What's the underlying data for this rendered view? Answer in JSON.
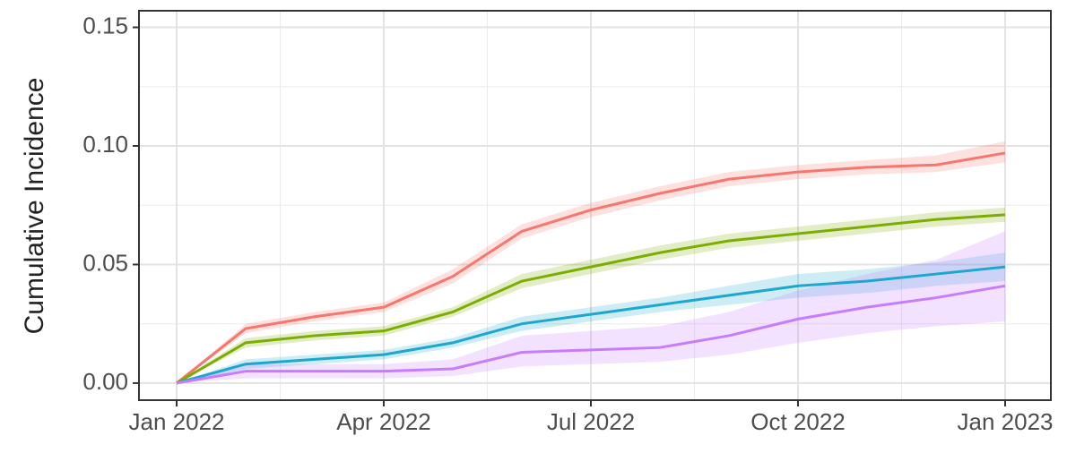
{
  "chart_data": {
    "type": "line",
    "y_label": "Cumulative Incidence",
    "x": [
      "2022-01",
      "2022-02",
      "2022-03",
      "2022-04",
      "2022-05",
      "2022-06",
      "2022-07",
      "2022-08",
      "2022-09",
      "2022-10",
      "2022-11",
      "2022-12",
      "2023-01"
    ],
    "xticks": [
      {
        "value": "2022-01",
        "label": "Jan 2022"
      },
      {
        "value": "2022-04",
        "label": "Apr 2022"
      },
      {
        "value": "2022-07",
        "label": "Jul 2022"
      },
      {
        "value": "2022-10",
        "label": "Oct 2022"
      },
      {
        "value": "2023-01",
        "label": "Jan 2023"
      }
    ],
    "ylim": [
      -0.0072,
      0.157
    ],
    "yticks": [
      {
        "value": 0,
        "label": "0.00"
      },
      {
        "value": 0.05,
        "label": "0.05"
      },
      {
        "value": 0.1,
        "label": "0.10"
      },
      {
        "value": 0.15,
        "label": "0.15"
      }
    ],
    "grid": true,
    "series": [
      {
        "color": "#f8766d",
        "values": [
          0,
          0.023,
          0.028,
          0.032,
          0.045,
          0.064,
          0.073,
          0.08,
          0.086,
          0.089,
          0.091,
          0.092,
          0.097
        ],
        "lower": [
          0,
          0.021,
          0.026,
          0.03,
          0.042,
          0.061,
          0.07,
          0.077,
          0.083,
          0.086,
          0.088,
          0.089,
          0.093
        ],
        "upper": [
          0,
          0.025,
          0.03,
          0.034,
          0.048,
          0.067,
          0.076,
          0.083,
          0.089,
          0.092,
          0.094,
          0.096,
          0.102
        ]
      },
      {
        "color": "#7cae00",
        "values": [
          0,
          0.017,
          0.02,
          0.022,
          0.03,
          0.043,
          0.049,
          0.055,
          0.06,
          0.063,
          0.066,
          0.069,
          0.071
        ],
        "lower": [
          0,
          0.015,
          0.018,
          0.02,
          0.028,
          0.04,
          0.046,
          0.052,
          0.057,
          0.06,
          0.063,
          0.066,
          0.068
        ],
        "upper": [
          0,
          0.019,
          0.022,
          0.024,
          0.032,
          0.046,
          0.052,
          0.058,
          0.063,
          0.066,
          0.069,
          0.072,
          0.074
        ]
      },
      {
        "color": "#1ba7cf",
        "values": [
          0,
          0.008,
          0.01,
          0.012,
          0.017,
          0.025,
          0.029,
          0.033,
          0.037,
          0.041,
          0.043,
          0.046,
          0.049
        ],
        "lower": [
          0,
          0.006,
          0.008,
          0.01,
          0.015,
          0.022,
          0.026,
          0.03,
          0.033,
          0.036,
          0.038,
          0.041,
          0.043
        ],
        "upper": [
          0,
          0.01,
          0.012,
          0.014,
          0.019,
          0.028,
          0.032,
          0.036,
          0.041,
          0.046,
          0.048,
          0.051,
          0.055
        ]
      },
      {
        "color": "#c77cff",
        "values": [
          0,
          0.005,
          0.005,
          0.005,
          0.006,
          0.013,
          0.014,
          0.015,
          0.02,
          0.027,
          0.032,
          0.036,
          0.041
        ],
        "lower": [
          0,
          0.002,
          0.002,
          0.002,
          0.003,
          0.007,
          0.008,
          0.009,
          0.012,
          0.017,
          0.021,
          0.024,
          0.026
        ],
        "upper": [
          0,
          0.008,
          0.008,
          0.008,
          0.01,
          0.02,
          0.022,
          0.024,
          0.03,
          0.039,
          0.046,
          0.052,
          0.064
        ]
      }
    ]
  }
}
